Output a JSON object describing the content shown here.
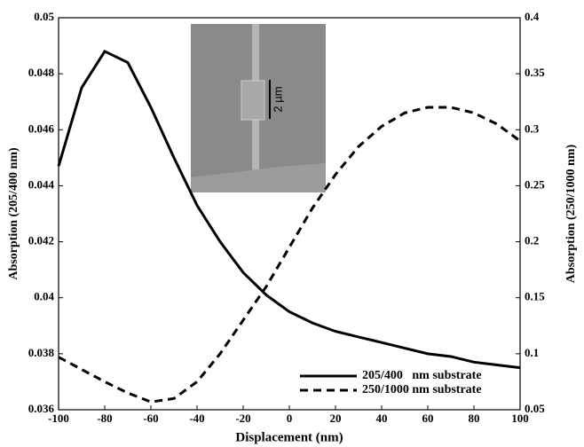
{
  "chart_data": {
    "type": "line",
    "x_label": "Displacement (nm)",
    "y_label": "Absorption (205/400 nm)",
    "y2_label": "Absorption (250/1000 nm)",
    "inset_label": "2 µm",
    "x": [
      -100,
      -90,
      -80,
      -70,
      -60,
      -50,
      -40,
      -30,
      -20,
      -10,
      0,
      10,
      20,
      30,
      40,
      50,
      60,
      70,
      80,
      90,
      100
    ],
    "xlim": [
      -100,
      100
    ],
    "xticks": [
      -100,
      -80,
      -60,
      -40,
      -20,
      0,
      20,
      40,
      60,
      80,
      100
    ],
    "ylim": [
      0.036,
      0.05
    ],
    "yticks": [
      0.036,
      0.038,
      0.04,
      0.042,
      0.044,
      0.046,
      0.048,
      0.05
    ],
    "y2lim": [
      0.05,
      0.4
    ],
    "y2ticks": [
      0.05,
      0.1,
      0.15,
      0.2,
      0.25,
      0.3,
      0.35,
      0.4
    ],
    "legend": "lower right",
    "series": [
      {
        "name": "205/400   nm substrate",
        "color": "#000000",
        "dash": false,
        "values": [
          0.0447,
          0.0475,
          0.0488,
          0.0484,
          0.0468,
          0.045,
          0.0433,
          0.042,
          0.0409,
          0.0401,
          0.0395,
          0.0391,
          0.0388,
          0.0386,
          0.0384,
          0.0382,
          0.038,
          0.0379,
          0.0377,
          0.0376,
          0.0375
        ]
      },
      {
        "name": "250/1000 nm substrate",
        "color": "#000000",
        "dash": true,
        "axis": "y2",
        "values": [
          0.097,
          0.086,
          0.075,
          0.065,
          0.057,
          0.06,
          0.075,
          0.1,
          0.13,
          0.16,
          0.195,
          0.23,
          0.26,
          0.285,
          0.303,
          0.315,
          0.32,
          0.32,
          0.315,
          0.305,
          0.29
        ]
      }
    ]
  }
}
